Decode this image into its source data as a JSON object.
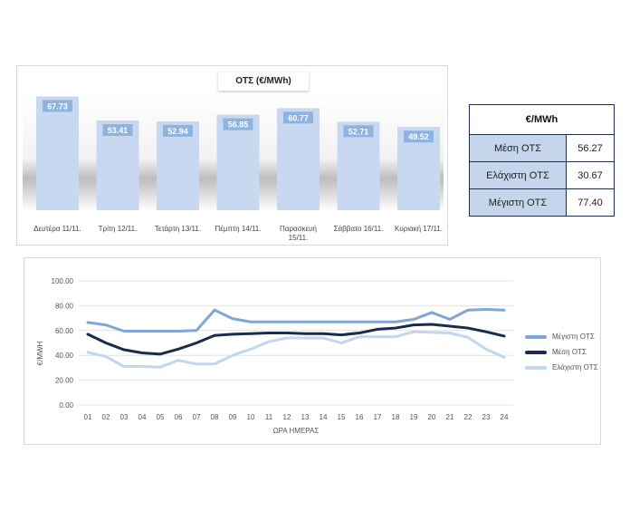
{
  "chart_data": [
    {
      "type": "bar",
      "title": "ΟΤΣ (€/MWh)",
      "categories": [
        "Δευτέρα 11/11.",
        "Τρίτη 12/11.",
        "Τετάρτη 13/11.",
        "Πέμπτη 14/11.",
        "Παρασκευή 15/11.",
        "Σάββατο 16/11.",
        "Κυριακή 17/11."
      ],
      "values": [
        67.73,
        53.41,
        52.94,
        56.85,
        60.77,
        52.71,
        49.52
      ],
      "value_labels": [
        "67.73",
        "53.41",
        "52.94",
        "56.85",
        "60.77",
        "52.71",
        "49.52"
      ],
      "ylim": [
        0,
        75
      ],
      "colors": {
        "bar": "#c8d8f0",
        "label_bg": "#8eb3df",
        "label_text": "#ffffff"
      }
    },
    {
      "type": "line",
      "xlabel": "ΩΡΑ ΗΜΕΡΑΣ",
      "ylabel": "€/MWH",
      "x": [
        "01",
        "02",
        "03",
        "04",
        "05",
        "06",
        "07",
        "08",
        "09",
        "10",
        "11",
        "12",
        "13",
        "14",
        "15",
        "16",
        "17",
        "18",
        "19",
        "20",
        "21",
        "22",
        "23",
        "24"
      ],
      "yticks": [
        "0.00",
        "20.00",
        "40.00",
        "60.00",
        "80.00",
        "100.00"
      ],
      "ylim": [
        0,
        100
      ],
      "grid": true,
      "legend_position": "right",
      "series": [
        {
          "name": "Μέγιστη ΟΤΣ",
          "color": "#7ea6d6",
          "values": [
            66.5,
            64.5,
            59.5,
            59.5,
            59.5,
            59.5,
            60,
            76.5,
            69.5,
            67,
            67,
            67,
            67,
            67,
            67,
            67,
            67,
            67,
            69,
            74.5,
            69,
            76.5,
            77,
            76.5
          ]
        },
        {
          "name": "Μέση ΟΤΣ",
          "color": "#1b2b4b",
          "values": [
            57,
            50,
            44.5,
            42,
            41,
            45,
            50,
            56,
            57,
            57.5,
            58,
            58,
            57.5,
            57.5,
            56.5,
            58,
            61,
            62,
            64.5,
            65,
            63.5,
            62,
            59,
            55.5
          ]
        },
        {
          "name": "Ελάχιστη ΟΤΣ",
          "color": "#c3d6ee",
          "values": [
            42.5,
            39,
            31,
            31,
            30.5,
            36,
            33,
            33,
            40,
            45,
            51,
            54,
            54,
            54,
            50,
            55,
            55,
            55,
            59,
            58.5,
            58,
            54.5,
            45,
            38.5
          ]
        }
      ]
    }
  ],
  "summary_table": {
    "header": "€/MWh",
    "rows": [
      {
        "label": "Μέση ΟΤΣ",
        "value": "56.27"
      },
      {
        "label": "Ελάχιστη ΟΤΣ",
        "value": "30.67"
      },
      {
        "label": "Μέγιστη ΟΤΣ",
        "value": "77.40"
      }
    ]
  }
}
